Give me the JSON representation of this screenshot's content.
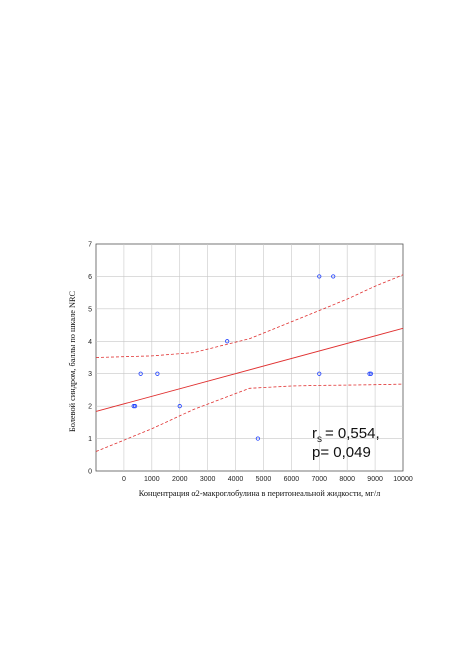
{
  "chart_data": {
    "type": "scatter",
    "title": "",
    "xlabel": "Концентрация  α2-макроглобулина в перитонеальной жидкости, мг/л",
    "ylabel": "Болевой синдром, баллы по шкале NRC",
    "xlim": [
      -1000,
      10000
    ],
    "ylim": [
      0,
      7
    ],
    "xticks": [
      0,
      1000,
      2000,
      3000,
      4000,
      5000,
      6000,
      7000,
      8000,
      9000,
      10000
    ],
    "yticks": [
      0,
      1,
      2,
      3,
      4,
      5,
      6,
      7
    ],
    "grid": true,
    "points": [
      {
        "x": 350,
        "y": 2
      },
      {
        "x": 400,
        "y": 2
      },
      {
        "x": 600,
        "y": 3
      },
      {
        "x": 1200,
        "y": 3
      },
      {
        "x": 2000,
        "y": 2
      },
      {
        "x": 3700,
        "y": 4
      },
      {
        "x": 4800,
        "y": 1
      },
      {
        "x": 7000,
        "y": 6
      },
      {
        "x": 7000,
        "y": 3
      },
      {
        "x": 7500,
        "y": 6
      },
      {
        "x": 8800,
        "y": 3
      },
      {
        "x": 8850,
        "y": 3
      }
    ],
    "regression": {
      "intercept": 2.07,
      "slope": 0.000233
    },
    "confidence_band": {
      "x": [
        -1000,
        1000,
        2500,
        4500,
        6000,
        7000,
        8000,
        9000,
        10000
      ],
      "upper": [
        3.5,
        3.55,
        3.65,
        4.08,
        4.6,
        4.95,
        5.3,
        5.7,
        6.05
      ],
      "lower": [
        0.6,
        1.3,
        1.9,
        2.55,
        2.62,
        2.64,
        2.65,
        2.66,
        2.68
      ]
    },
    "colors": {
      "points": "#1a3cff",
      "regression": "#e03030",
      "grid": "#c8c8c8"
    },
    "annotation": {
      "r_symbol": "r",
      "r_subscript": "s",
      "r_value": "= 0,554,",
      "p_text": "p= 0,049"
    }
  }
}
